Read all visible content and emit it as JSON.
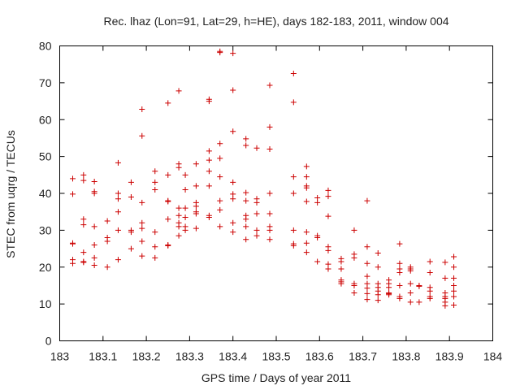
{
  "chart_data": {
    "type": "scatter",
    "title": "Rec. lhaz (Lon=91, Lat=29, h=HE), days 182-183, 2011, window 004",
    "xlabel": "GPS time / Days of year 2011",
    "ylabel": "STEC from uqrg / TECUs",
    "xlim": [
      183,
      184
    ],
    "ylim": [
      0,
      80
    ],
    "x_ticks": [
      183,
      183.1,
      183.2,
      183.3,
      183.4,
      183.5,
      183.6,
      183.7,
      183.8,
      183.9,
      184
    ],
    "x_tick_labels": [
      "183",
      "183.1",
      "183.2",
      "183.3",
      "183.4",
      "183.5",
      "183.6",
      "183.7",
      "183.8",
      "183.9",
      "184"
    ],
    "y_ticks": [
      0,
      10,
      20,
      30,
      40,
      50,
      60,
      70,
      80
    ],
    "y_tick_labels": [
      "0",
      "10",
      "20",
      "30",
      "40",
      "50",
      "60",
      "70",
      "80"
    ],
    "grid": false,
    "legend": "none",
    "marker": "plus",
    "marker_color": "#cc0000",
    "points": [
      [
        183.03,
        44
      ],
      [
        183.03,
        39.8
      ],
      [
        183.03,
        26.5
      ],
      [
        183.03,
        26.3
      ],
      [
        183.03,
        22
      ],
      [
        183.03,
        21
      ],
      [
        183.055,
        45
      ],
      [
        183.055,
        43.5
      ],
      [
        183.055,
        33
      ],
      [
        183.055,
        31.5
      ],
      [
        183.055,
        24
      ],
      [
        183.055,
        21.5
      ],
      [
        183.055,
        21.3
      ],
      [
        183.08,
        43.2
      ],
      [
        183.08,
        40.5
      ],
      [
        183.08,
        40
      ],
      [
        183.08,
        31
      ],
      [
        183.08,
        26
      ],
      [
        183.08,
        22.5
      ],
      [
        183.08,
        20.5
      ],
      [
        183.11,
        32.5
      ],
      [
        183.11,
        28
      ],
      [
        183.11,
        27
      ],
      [
        183.11,
        20
      ],
      [
        183.135,
        48.3
      ],
      [
        183.135,
        40
      ],
      [
        183.135,
        38.5
      ],
      [
        183.135,
        35
      ],
      [
        183.135,
        30
      ],
      [
        183.135,
        22
      ],
      [
        183.165,
        43
      ],
      [
        183.165,
        39
      ],
      [
        183.165,
        30
      ],
      [
        183.165,
        29.5
      ],
      [
        183.165,
        25
      ],
      [
        183.19,
        62.8
      ],
      [
        183.19,
        55.6
      ],
      [
        183.19,
        37.5
      ],
      [
        183.19,
        32
      ],
      [
        183.19,
        30.5
      ],
      [
        183.19,
        27
      ],
      [
        183.19,
        23
      ],
      [
        183.22,
        46
      ],
      [
        183.22,
        43
      ],
      [
        183.22,
        41
      ],
      [
        183.22,
        29.5
      ],
      [
        183.22,
        25.5
      ],
      [
        183.22,
        22.5
      ],
      [
        183.25,
        64.5
      ],
      [
        183.25,
        45
      ],
      [
        183.25,
        38
      ],
      [
        183.25,
        37.8
      ],
      [
        183.25,
        33
      ],
      [
        183.25,
        26
      ],
      [
        183.25,
        25.8
      ],
      [
        183.275,
        67.8
      ],
      [
        183.275,
        48
      ],
      [
        183.275,
        47
      ],
      [
        183.275,
        36
      ],
      [
        183.275,
        34
      ],
      [
        183.275,
        32
      ],
      [
        183.275,
        31
      ],
      [
        183.275,
        28.5
      ],
      [
        183.29,
        45
      ],
      [
        183.29,
        41
      ],
      [
        183.29,
        36
      ],
      [
        183.29,
        33.5
      ],
      [
        183.29,
        31
      ],
      [
        183.29,
        30
      ],
      [
        183.315,
        48
      ],
      [
        183.315,
        42
      ],
      [
        183.315,
        37.5
      ],
      [
        183.315,
        36.5
      ],
      [
        183.315,
        35
      ],
      [
        183.315,
        34.5
      ],
      [
        183.315,
        30.5
      ],
      [
        183.345,
        65.5
      ],
      [
        183.345,
        65
      ],
      [
        183.345,
        51.5
      ],
      [
        183.345,
        49
      ],
      [
        183.345,
        46
      ],
      [
        183.345,
        42
      ],
      [
        183.345,
        34
      ],
      [
        183.345,
        33.5
      ],
      [
        183.37,
        78.5
      ],
      [
        183.37,
        78.2
      ],
      [
        183.37,
        53.5
      ],
      [
        183.37,
        49.5
      ],
      [
        183.37,
        44.5
      ],
      [
        183.37,
        38
      ],
      [
        183.37,
        35.5
      ],
      [
        183.37,
        31
      ],
      [
        183.4,
        78
      ],
      [
        183.4,
        68
      ],
      [
        183.4,
        56.8
      ],
      [
        183.4,
        43
      ],
      [
        183.4,
        39.8
      ],
      [
        183.4,
        38.5
      ],
      [
        183.4,
        32
      ],
      [
        183.4,
        29.5
      ],
      [
        183.43,
        54.8
      ],
      [
        183.43,
        53
      ],
      [
        183.43,
        40.2
      ],
      [
        183.43,
        38
      ],
      [
        183.43,
        34
      ],
      [
        183.43,
        33
      ],
      [
        183.43,
        31
      ],
      [
        183.43,
        27.5
      ],
      [
        183.455,
        52.3
      ],
      [
        183.455,
        38.5
      ],
      [
        183.455,
        37.5
      ],
      [
        183.455,
        34.5
      ],
      [
        183.455,
        30
      ],
      [
        183.455,
        28.5
      ],
      [
        183.485,
        69.3
      ],
      [
        183.485,
        58
      ],
      [
        183.485,
        52
      ],
      [
        183.485,
        40
      ],
      [
        183.485,
        34.5
      ],
      [
        183.485,
        31
      ],
      [
        183.485,
        30
      ],
      [
        183.485,
        27.5
      ],
      [
        183.54,
        72.5
      ],
      [
        183.54,
        64.7
      ],
      [
        183.54,
        44.5
      ],
      [
        183.54,
        40
      ],
      [
        183.54,
        30
      ],
      [
        183.54,
        26.3
      ],
      [
        183.54,
        25.8
      ],
      [
        183.57,
        47.3
      ],
      [
        183.57,
        44.5
      ],
      [
        183.57,
        42
      ],
      [
        183.57,
        41.5
      ],
      [
        183.57,
        37.8
      ],
      [
        183.57,
        29.5
      ],
      [
        183.57,
        26.5
      ],
      [
        183.57,
        24
      ],
      [
        183.595,
        38.8
      ],
      [
        183.595,
        37.5
      ],
      [
        183.595,
        28.5
      ],
      [
        183.595,
        28
      ],
      [
        183.595,
        21.5
      ],
      [
        183.62,
        40.8
      ],
      [
        183.62,
        39.2
      ],
      [
        183.62,
        33.8
      ],
      [
        183.62,
        25.5
      ],
      [
        183.62,
        24.5
      ],
      [
        183.62,
        20.8
      ],
      [
        183.62,
        19.5
      ],
      [
        183.65,
        22.3
      ],
      [
        183.65,
        21.5
      ],
      [
        183.65,
        19.5
      ],
      [
        183.65,
        16.5
      ],
      [
        183.65,
        16
      ],
      [
        183.65,
        15.5
      ],
      [
        183.68,
        30
      ],
      [
        183.68,
        23.5
      ],
      [
        183.68,
        22.5
      ],
      [
        183.68,
        15.5
      ],
      [
        183.68,
        15
      ],
      [
        183.68,
        13
      ],
      [
        183.71,
        38
      ],
      [
        183.71,
        25.5
      ],
      [
        183.71,
        21
      ],
      [
        183.71,
        17.5
      ],
      [
        183.71,
        15.5
      ],
      [
        183.71,
        14.3
      ],
      [
        183.71,
        12.8
      ],
      [
        183.71,
        11.2
      ],
      [
        183.735,
        23.8
      ],
      [
        183.735,
        20
      ],
      [
        183.735,
        15.5
      ],
      [
        183.735,
        14.5
      ],
      [
        183.735,
        13.5
      ],
      [
        183.735,
        12.5
      ],
      [
        183.735,
        11
      ],
      [
        183.76,
        16.5
      ],
      [
        183.76,
        15.5
      ],
      [
        183.76,
        14.5
      ],
      [
        183.76,
        13
      ],
      [
        183.76,
        12.8
      ],
      [
        183.76,
        12.5
      ],
      [
        183.785,
        26.3
      ],
      [
        183.785,
        21
      ],
      [
        183.785,
        19.5
      ],
      [
        183.785,
        18.5
      ],
      [
        183.785,
        15
      ],
      [
        183.785,
        12
      ],
      [
        183.785,
        11.5
      ],
      [
        183.81,
        20
      ],
      [
        183.81,
        19.5
      ],
      [
        183.81,
        19
      ],
      [
        183.81,
        15.5
      ],
      [
        183.81,
        13
      ],
      [
        183.81,
        10.5
      ],
      [
        183.83,
        15
      ],
      [
        183.83,
        14.8
      ],
      [
        183.83,
        10.5
      ],
      [
        183.855,
        21.5
      ],
      [
        183.855,
        18.5
      ],
      [
        183.855,
        14.5
      ],
      [
        183.855,
        13.5
      ],
      [
        183.855,
        12
      ],
      [
        183.855,
        11.5
      ],
      [
        183.89,
        21.3
      ],
      [
        183.89,
        17
      ],
      [
        183.89,
        13
      ],
      [
        183.89,
        12
      ],
      [
        183.89,
        11.5
      ],
      [
        183.89,
        10.5
      ],
      [
        183.89,
        9.5
      ],
      [
        183.91,
        22.8
      ],
      [
        183.91,
        20
      ],
      [
        183.91,
        17
      ],
      [
        183.91,
        15
      ],
      [
        183.91,
        13.5
      ],
      [
        183.91,
        12
      ],
      [
        183.91,
        9.7
      ]
    ]
  }
}
